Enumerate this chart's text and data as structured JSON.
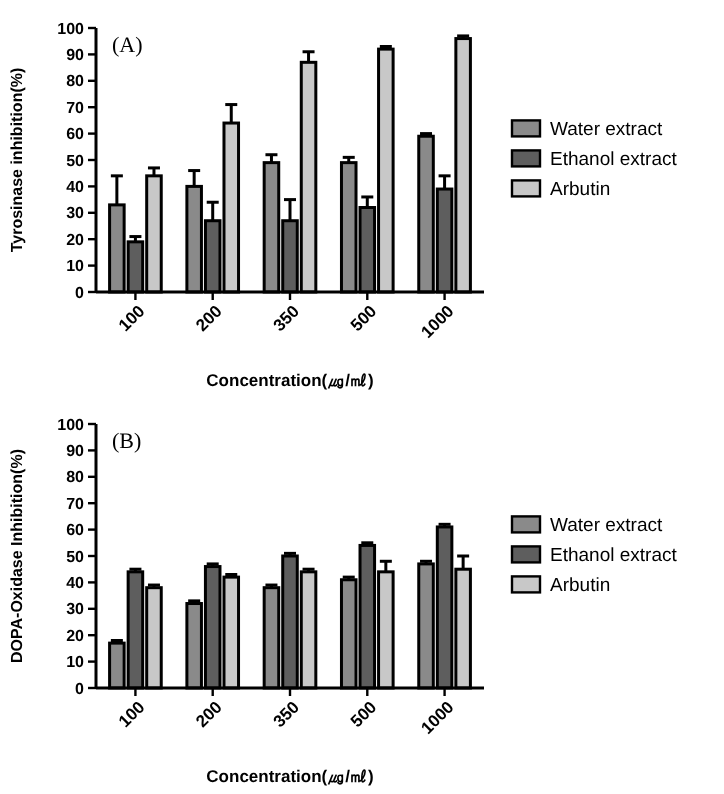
{
  "chart_data": [
    {
      "type": "bar",
      "ylabel": "Tyrosinase inhibition(%)",
      "xlabel": "Concentration(㎍/㎖)",
      "annotations": [
        "(A)"
      ],
      "categories": [
        "100",
        "200",
        "350",
        "500",
        "1000"
      ],
      "ylim": [
        0,
        100
      ],
      "yticks": [
        0,
        10,
        20,
        30,
        40,
        50,
        60,
        70,
        80,
        90,
        100
      ],
      "legend": "right",
      "series": [
        {
          "name": "Water extract",
          "color": "#8a8a8a",
          "values": [
            33,
            40,
            49,
            49,
            59
          ],
          "errors": [
            11,
            6,
            3,
            2,
            1
          ]
        },
        {
          "name": "Ethanol extract",
          "color": "#5e5e5e",
          "values": [
            19,
            27,
            27,
            32,
            39
          ],
          "errors": [
            2,
            7,
            8,
            4,
            5
          ]
        },
        {
          "name": "Arbutin",
          "color": "#c8c8c8",
          "values": [
            44,
            64,
            87,
            92,
            96
          ],
          "errors": [
            3,
            7,
            4,
            1,
            1
          ]
        }
      ]
    },
    {
      "type": "bar",
      "ylabel": "DOPA-Oxidase Inhibition(%)",
      "xlabel": "Concentration(㎍/㎖)",
      "annotations": [
        "(B)"
      ],
      "categories": [
        "100",
        "200",
        "350",
        "500",
        "1000"
      ],
      "ylim": [
        0,
        100
      ],
      "yticks": [
        0,
        10,
        20,
        30,
        40,
        50,
        60,
        70,
        80,
        90,
        100
      ],
      "legend": "right",
      "series": [
        {
          "name": "Water extract",
          "color": "#8a8a8a",
          "values": [
            17,
            32,
            38,
            41,
            47
          ],
          "errors": [
            1,
            1,
            1,
            1,
            1
          ]
        },
        {
          "name": "Ethanol extract",
          "color": "#5e5e5e",
          "values": [
            44,
            46,
            50,
            54,
            61
          ],
          "errors": [
            1,
            1,
            1,
            1,
            1
          ]
        },
        {
          "name": "Arbutin",
          "color": "#c8c8c8",
          "values": [
            38,
            42,
            44,
            44,
            45
          ],
          "errors": [
            1,
            1,
            1,
            4,
            5
          ]
        }
      ]
    }
  ]
}
